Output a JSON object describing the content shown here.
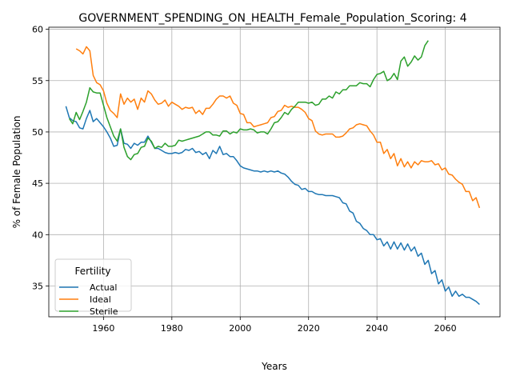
{
  "chart_data": {
    "type": "line",
    "title": "GOVERNMENT_SPENDING_ON_HEALTH_Female_Population_Scoring: 4",
    "xlabel": "Years",
    "ylabel": "% of Female Population",
    "xlim": [
      1944,
      2076
    ],
    "ylim": [
      32.0,
      60.2
    ],
    "xticks": [
      1960,
      1980,
      2000,
      2020,
      2040,
      2060
    ],
    "yticks": [
      35,
      40,
      45,
      50,
      55,
      60
    ],
    "grid": true,
    "legend": {
      "title": "Fertility",
      "position": "lower-left"
    },
    "series": [
      {
        "name": "Actual",
        "color": "#1f77b4",
        "x": [
          1949,
          1950,
          1951,
          1952,
          1953,
          1954,
          1955,
          1956,
          1957,
          1958,
          1959,
          1960,
          1961,
          1962,
          1963,
          1964,
          1965,
          1966,
          1967,
          1968,
          1969,
          1970,
          1971,
          1972,
          1973,
          1974,
          1975,
          1976,
          1977,
          1978,
          1979,
          1980,
          1981,
          1982,
          1983,
          1984,
          1985,
          1986,
          1987,
          1988,
          1989,
          1990,
          1991,
          1992,
          1993,
          1994,
          1995,
          1996,
          1997,
          1998,
          1999,
          2000,
          2001,
          2002,
          2003,
          2004,
          2005,
          2006,
          2007,
          2008,
          2009,
          2010,
          2011,
          2012,
          2013,
          2014,
          2015,
          2016,
          2017,
          2018,
          2019,
          2020,
          2021,
          2022,
          2023,
          2024,
          2025,
          2026,
          2027,
          2028,
          2029,
          2030,
          2031,
          2032,
          2033,
          2034,
          2035,
          2036,
          2037,
          2038,
          2039,
          2040,
          2041,
          2042,
          2043,
          2044,
          2045,
          2046,
          2047,
          2048,
          2049,
          2050,
          2051,
          2052,
          2053,
          2054,
          2055,
          2056,
          2057,
          2058,
          2059,
          2060,
          2061,
          2062,
          2063,
          2064,
          2065,
          2066,
          2067,
          2068,
          2069,
          2070
        ],
        "values": [
          52.5,
          51.4,
          51.1,
          51.0,
          50.4,
          50.3,
          51.3,
          52.1,
          51.0,
          51.3,
          50.9,
          50.5,
          50.0,
          49.4,
          48.6,
          48.7,
          50.3,
          48.9,
          48.8,
          48.4,
          48.9,
          48.7,
          49.0,
          49.0,
          49.6,
          49.0,
          48.4,
          48.4,
          48.2,
          48.0,
          47.9,
          47.9,
          48.0,
          47.9,
          48.0,
          48.3,
          48.2,
          48.4,
          48.0,
          48.1,
          47.8,
          48.0,
          47.4,
          48.2,
          47.9,
          48.6,
          47.8,
          47.9,
          47.6,
          47.6,
          47.2,
          46.7,
          46.5,
          46.4,
          46.3,
          46.2,
          46.2,
          46.1,
          46.2,
          46.1,
          46.2,
          46.1,
          46.2,
          46.0,
          45.9,
          45.6,
          45.2,
          44.9,
          44.8,
          44.4,
          44.5,
          44.2,
          44.2,
          44.0,
          43.9,
          43.9,
          43.8,
          43.8,
          43.8,
          43.7,
          43.6,
          43.1,
          43.0,
          42.3,
          42.1,
          41.3,
          41.1,
          40.6,
          40.4,
          40.0,
          40.0,
          39.5,
          39.6,
          38.9,
          39.3,
          38.6,
          39.3,
          38.6,
          39.2,
          38.5,
          39.1,
          38.4,
          38.8,
          37.9,
          38.2,
          37.1,
          37.5,
          36.2,
          36.5,
          35.2,
          35.6,
          34.5,
          34.9,
          34.0,
          34.5,
          34.0,
          34.2,
          33.9,
          33.9,
          33.7,
          33.5,
          33.2
        ]
      },
      {
        "name": "Ideal",
        "color": "#ff7f0e",
        "x": [
          1952,
          1953,
          1954,
          1955,
          1956,
          1957,
          1958,
          1959,
          1960,
          1961,
          1962,
          1963,
          1964,
          1965,
          1966,
          1967,
          1968,
          1969,
          1970,
          1971,
          1972,
          1973,
          1974,
          1975,
          1976,
          1977,
          1978,
          1979,
          1980,
          1981,
          1982,
          1983,
          1984,
          1985,
          1986,
          1987,
          1988,
          1989,
          1990,
          1991,
          1992,
          1993,
          1994,
          1995,
          1996,
          1997,
          1998,
          1999,
          2000,
          2001,
          2002,
          2003,
          2004,
          2005,
          2006,
          2007,
          2008,
          2009,
          2010,
          2011,
          2012,
          2013,
          2014,
          2015,
          2016,
          2017,
          2018,
          2019,
          2020,
          2021,
          2022,
          2023,
          2024,
          2025,
          2026,
          2027,
          2028,
          2029,
          2030,
          2031,
          2032,
          2033,
          2034,
          2035,
          2036,
          2037,
          2038,
          2039,
          2040,
          2041,
          2042,
          2043,
          2044,
          2045,
          2046,
          2047,
          2048,
          2049,
          2050,
          2051,
          2052,
          2053,
          2054,
          2055,
          2056,
          2057,
          2058,
          2059,
          2060,
          2061,
          2062,
          2063,
          2064,
          2065,
          2066,
          2067,
          2068,
          2069,
          2070
        ],
        "values": [
          58.1,
          57.9,
          57.6,
          58.3,
          57.9,
          55.5,
          54.8,
          54.6,
          54.0,
          52.8,
          52.1,
          51.8,
          51.4,
          53.7,
          52.7,
          53.3,
          52.9,
          53.2,
          52.2,
          53.3,
          52.9,
          54.0,
          53.7,
          53.1,
          52.7,
          52.8,
          53.1,
          52.5,
          52.9,
          52.7,
          52.5,
          52.2,
          52.4,
          52.3,
          52.4,
          51.8,
          52.1,
          51.7,
          52.3,
          52.3,
          52.7,
          53.2,
          53.5,
          53.5,
          53.3,
          53.5,
          52.8,
          52.6,
          51.8,
          51.7,
          50.9,
          50.9,
          50.5,
          50.6,
          50.7,
          50.8,
          50.9,
          51.4,
          51.5,
          52.0,
          52.1,
          52.6,
          52.4,
          52.5,
          52.4,
          52.4,
          52.2,
          51.9,
          51.3,
          51.1,
          50.1,
          49.8,
          49.7,
          49.8,
          49.8,
          49.8,
          49.5,
          49.5,
          49.6,
          49.9,
          50.3,
          50.4,
          50.7,
          50.8,
          50.7,
          50.6,
          50.1,
          49.7,
          49.0,
          49.0,
          47.9,
          48.3,
          47.4,
          47.9,
          46.7,
          47.4,
          46.6,
          47.1,
          46.5,
          47.1,
          46.8,
          47.2,
          47.1,
          47.1,
          47.2,
          46.8,
          46.9,
          46.3,
          46.5,
          45.9,
          45.8,
          45.4,
          45.1,
          44.9,
          44.2,
          44.2,
          43.3,
          43.6,
          42.6
        ]
      },
      {
        "name": "Sterile",
        "color": "#2ca02c",
        "x": [
          1950,
          1951,
          1952,
          1953,
          1954,
          1955,
          1956,
          1957,
          1958,
          1959,
          1960,
          1961,
          1962,
          1963,
          1964,
          1965,
          1966,
          1967,
          1968,
          1969,
          1970,
          1971,
          1972,
          1973,
          1974,
          1975,
          1976,
          1977,
          1978,
          1979,
          1980,
          1981,
          1982,
          1983,
          1984,
          1985,
          1986,
          1987,
          1988,
          1989,
          1990,
          1991,
          1992,
          1993,
          1994,
          1995,
          1996,
          1997,
          1998,
          1999,
          2000,
          2001,
          2002,
          2003,
          2004,
          2005,
          2006,
          2007,
          2008,
          2009,
          2010,
          2011,
          2012,
          2013,
          2014,
          2015,
          2016,
          2017,
          2018,
          2019,
          2020,
          2021,
          2022,
          2023,
          2024,
          2025,
          2026,
          2027,
          2028,
          2029,
          2030,
          2031,
          2032,
          2033,
          2034,
          2035,
          2036,
          2037,
          2038,
          2039,
          2040,
          2041,
          2042,
          2043,
          2044,
          2045,
          2046,
          2047,
          2048,
          2049,
          2050,
          2051,
          2052,
          2053,
          2054,
          2055
        ],
        "values": [
          51.3,
          50.8,
          51.9,
          51.2,
          52.0,
          52.9,
          54.3,
          53.9,
          53.8,
          53.8,
          52.6,
          51.4,
          50.5,
          49.6,
          49.1,
          50.3,
          48.5,
          47.6,
          47.3,
          47.8,
          47.9,
          48.5,
          48.6,
          49.4,
          49.1,
          48.4,
          48.6,
          48.5,
          48.9,
          48.6,
          48.6,
          48.7,
          49.2,
          49.1,
          49.2,
          49.3,
          49.4,
          49.5,
          49.6,
          49.8,
          50.0,
          50.0,
          49.7,
          49.7,
          49.6,
          50.1,
          50.1,
          49.8,
          50.0,
          49.9,
          50.3,
          50.2,
          50.2,
          50.3,
          50.2,
          49.9,
          50.0,
          50.0,
          49.8,
          50.3,
          50.9,
          51.0,
          51.4,
          51.9,
          51.7,
          52.2,
          52.5,
          52.9,
          52.9,
          52.9,
          52.8,
          52.9,
          52.6,
          52.7,
          53.2,
          53.2,
          53.5,
          53.3,
          53.9,
          53.7,
          54.1,
          54.1,
          54.5,
          54.5,
          54.5,
          54.8,
          54.7,
          54.7,
          54.4,
          55.1,
          55.6,
          55.7,
          55.9,
          55.0,
          55.2,
          55.7,
          55.1,
          56.9,
          57.3,
          56.4,
          56.8,
          57.4,
          57.0,
          57.3,
          58.4,
          58.9
        ]
      }
    ]
  }
}
